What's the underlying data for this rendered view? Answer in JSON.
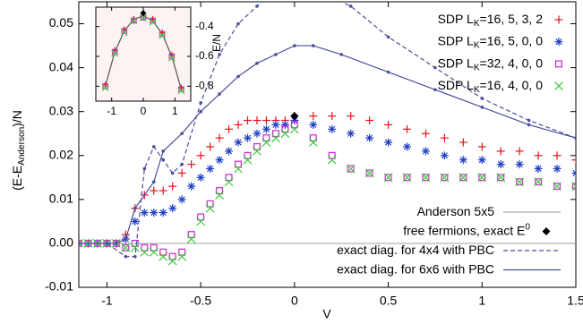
{
  "chart_data": [
    {
      "type": "line",
      "x_label": "V",
      "y_label": [
        {
          "text": "(E-E"
        },
        {
          "text": "Anderson",
          "shift": "sub"
        },
        {
          "text": ")/N"
        }
      ],
      "xlim": [
        -1.15,
        1.5
      ],
      "ylim": [
        -0.01,
        0.055
      ],
      "xticks": [
        -1,
        -0.5,
        0,
        0.5,
        1,
        1.5
      ],
      "yticks": [
        -0.01,
        {
          "value": 0,
          "label": "0.00"
        },
        0.01,
        0.02,
        0.03,
        0.04,
        0.05
      ],
      "grid": false,
      "x": [
        -1.15,
        -1.1,
        -1.05,
        -1,
        -0.95,
        -0.9,
        -0.85,
        -0.8,
        -0.75,
        -0.7,
        -0.65,
        -0.6,
        -0.55,
        -0.5,
        -0.45,
        -0.4,
        -0.35,
        -0.3,
        -0.25,
        -0.2,
        -0.15,
        -0.1,
        -0.05,
        0,
        0.1,
        0.2,
        0.3,
        0.4,
        0.5,
        0.6,
        0.7,
        0.8,
        0.9,
        1,
        1.1,
        1.2,
        1.3,
        1.4,
        1.5
      ],
      "series": [
        {
          "name": [
            {
              "text": "SDP L"
            },
            {
              "text": "K",
              "shift": "sub"
            },
            {
              "text": "=16, 5, 3, 2"
            }
          ],
          "legend": "top",
          "style": "markers",
          "marker": "plus",
          "color": "#e8141c",
          "values": [
            0,
            0,
            0,
            0,
            0,
            0.002,
            0.008,
            0.011,
            0.012,
            0.012,
            0.013,
            0.016,
            0.018,
            0.02,
            0.022,
            0.024,
            0.026,
            0.027,
            0.028,
            0.028,
            0.028,
            0.028,
            0.028,
            0.029,
            0.029,
            0.029,
            0.029,
            0.028,
            0.027,
            0.026,
            0.025,
            0.024,
            0.023,
            0.022,
            0.021,
            0.021,
            0.02,
            0.02,
            0.019
          ]
        },
        {
          "name": [
            {
              "text": "SDP L"
            },
            {
              "text": "K",
              "shift": "sub"
            },
            {
              "text": "=16, 5, 0, 0"
            }
          ],
          "legend": "top",
          "style": "markers",
          "marker": "star",
          "color": "#1f3fc4",
          "values": [
            0,
            0,
            0,
            0,
            0,
            0.001,
            0.005,
            0.007,
            0.007,
            0.007,
            0.008,
            0.01,
            0.013,
            0.015,
            0.017,
            0.019,
            0.021,
            0.023,
            0.024,
            0.025,
            0.026,
            0.027,
            0.027,
            0.028,
            0.027,
            0.026,
            0.025,
            0.024,
            0.023,
            0.022,
            0.021,
            0.02,
            0.019,
            0.019,
            0.018,
            0.018,
            0.017,
            0.017,
            0.016
          ]
        },
        {
          "name": [
            {
              "text": "SDP L"
            },
            {
              "text": "K",
              "shift": "sub"
            },
            {
              "text": "=32, 4, 0, 0"
            }
          ],
          "legend": "top",
          "style": "markers",
          "marker": "square",
          "color": "#d424d4",
          "values": [
            0,
            0,
            0,
            0,
            0,
            -0.001,
            0,
            -0.001,
            -0.001,
            -0.002,
            -0.003,
            -0.002,
            0.002,
            0.006,
            0.009,
            0.012,
            0.015,
            0.018,
            0.02,
            0.022,
            0.024,
            0.025,
            0.026,
            0.027,
            0.024,
            0.02,
            0.017,
            0.016,
            0.015,
            0.015,
            0.015,
            0.015,
            0.015,
            0.015,
            0.015,
            0.014,
            0.014,
            0.013,
            0.013
          ]
        },
        {
          "name": [
            {
              "text": "SDP L"
            },
            {
              "text": "K",
              "shift": "sub"
            },
            {
              "text": "=16, 4, 0, 0"
            }
          ],
          "legend": "top",
          "style": "markers",
          "marker": "cross",
          "color": "#3ccc3c",
          "values": [
            0,
            0,
            0,
            0,
            0,
            -0.001,
            -0.001,
            -0.002,
            -0.002,
            -0.003,
            -0.004,
            -0.003,
            0.001,
            0.005,
            0.008,
            0.011,
            0.014,
            0.017,
            0.019,
            0.021,
            0.023,
            0.024,
            0.025,
            0.026,
            0.023,
            0.019,
            0.017,
            0.016,
            0.015,
            0.015,
            0.015,
            0.015,
            0.015,
            0.015,
            0.015,
            0.014,
            0.014,
            0.013,
            0.013
          ]
        },
        {
          "name": [
            {
              "text": "Anderson 5x5"
            }
          ],
          "legend": "bottom",
          "style": "line",
          "color": "#aaaaaa",
          "x": [
            -1.15,
            1.5
          ],
          "values": [
            0,
            0
          ]
        },
        {
          "name": [
            {
              "text": "free fermions, exact E"
            },
            {
              "text": "0",
              "shift": "sup"
            }
          ],
          "legend": "bottom",
          "style": "markers",
          "marker": "diamond",
          "color": "#000000",
          "x": [
            0
          ],
          "values": [
            0.029
          ]
        },
        {
          "name": [
            {
              "text": "exact diag. for 4x4 with PBC"
            }
          ],
          "legend": "bottom",
          "style": "line",
          "dash": true,
          "marker": "dot",
          "color": "#4a4f9c",
          "x": [
            -1.15,
            -1,
            -0.9,
            -0.85,
            -0.8,
            -0.75,
            -0.7,
            -0.65,
            -0.6,
            -0.5,
            -0.4,
            -0.3,
            -0.2,
            -0.1,
            0.1,
            0.2,
            0.3,
            0.5,
            0.75,
            1,
            1.25,
            1.5
          ],
          "values": [
            0,
            0,
            -0.003,
            -0.003,
            0.017,
            0.022,
            0.019,
            0.016,
            0.018,
            0.032,
            0.043,
            0.05,
            0.054,
            0.058,
            0.058,
            0.056,
            0.054,
            0.047,
            0.04,
            0.033,
            0.028,
            0.024
          ]
        },
        {
          "name": [
            {
              "text": "exact diag. for 6x6 with PBC"
            }
          ],
          "legend": "bottom",
          "style": "line",
          "marker": "dot",
          "color": "#4a4f9c",
          "x": [
            -1.15,
            -0.95,
            -0.9,
            -0.85,
            -0.75,
            -0.7,
            -0.6,
            -0.5,
            -0.4,
            -0.3,
            -0.2,
            -0.1,
            0,
            0.1,
            0.25,
            0.5,
            0.75,
            1,
            1.25,
            1.5
          ],
          "values": [
            0,
            0,
            0.001,
            0.008,
            0.014,
            0.021,
            0.025,
            0.03,
            0.034,
            0.038,
            0.041,
            0.043,
            0.045,
            0.045,
            0.043,
            0.039,
            0.035,
            0.031,
            0.027,
            0.024
          ]
        }
      ]
    },
    {
      "type": "line",
      "y_label": "E/N",
      "xlim": [
        -1.5,
        1.5
      ],
      "ylim": [
        -0.9,
        -0.27
      ],
      "xticks": [
        -1,
        0,
        1
      ],
      "yticks": [
        -0.4,
        -0.6,
        -0.8
      ],
      "background": "#fcf3f3",
      "x": [
        -1.2,
        -0.9,
        -0.6,
        -0.3,
        0,
        0.3,
        0.6,
        0.9,
        1.2
      ],
      "series": [
        {
          "style": "line",
          "color": "#555555",
          "values": [
            -0.8,
            -0.57,
            -0.43,
            -0.35,
            -0.33,
            -0.36,
            -0.45,
            -0.6,
            -0.82
          ]
        },
        {
          "style": "markers",
          "marker": "plus",
          "color": "#e8141c",
          "values": [
            -0.79,
            -0.56,
            -0.42,
            -0.35,
            -0.33,
            -0.35,
            -0.44,
            -0.59,
            -0.81
          ]
        },
        {
          "style": "markers",
          "marker": "square",
          "color": "#d424d4",
          "values": [
            -0.8,
            -0.57,
            -0.43,
            -0.36,
            -0.34,
            -0.36,
            -0.45,
            -0.6,
            -0.82
          ]
        },
        {
          "style": "markers",
          "marker": "cross",
          "color": "#3ccc3c",
          "values": [
            -0.81,
            -0.58,
            -0.44,
            -0.36,
            -0.34,
            -0.37,
            -0.46,
            -0.61,
            -0.83
          ]
        },
        {
          "style": "markers",
          "marker": "diamond",
          "color": "#000000",
          "x": [
            0
          ],
          "values": [
            -0.31
          ]
        }
      ]
    }
  ]
}
